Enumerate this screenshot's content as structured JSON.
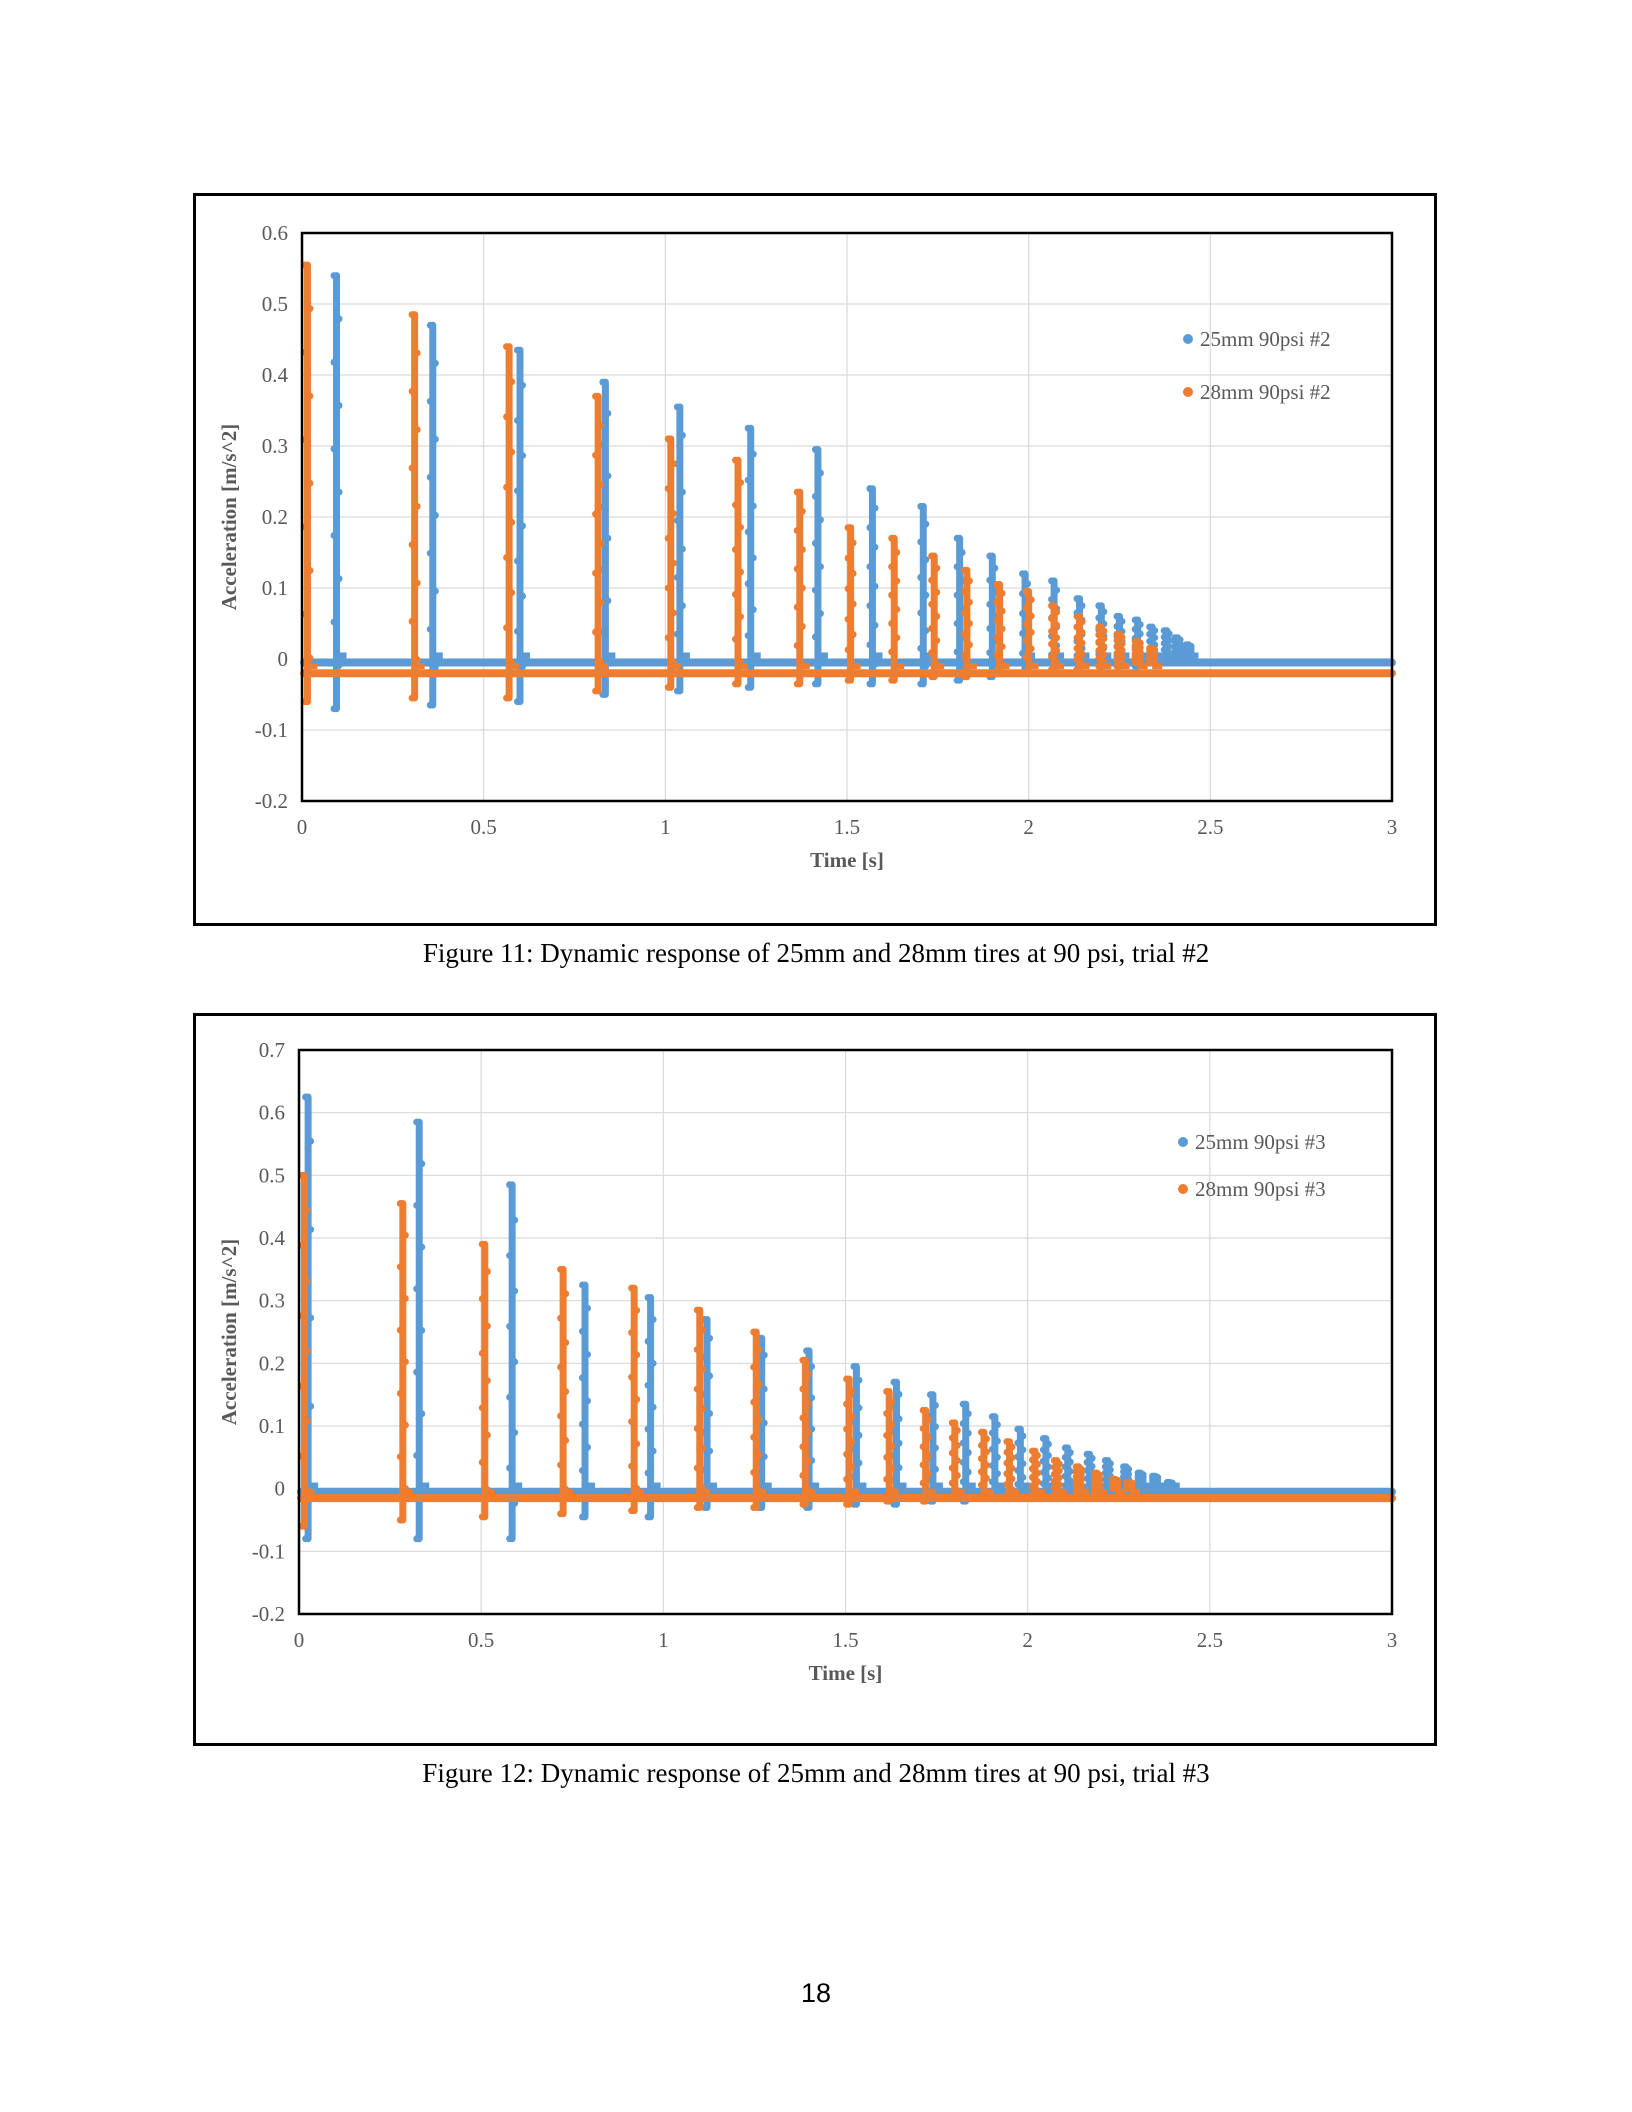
{
  "page_number": "18",
  "figures": [
    {
      "caption": "Figure 11: Dynamic response of 25mm and 28mm tires at 90 psi, trial #2",
      "chart_data": {
        "type": "scatter",
        "xlabel": "Time [s]",
        "ylabel": "Acceleration [m/s^2]",
        "xlim": [
          0,
          3
        ],
        "ylim": [
          -0.2,
          0.6
        ],
        "xticks": [
          "0",
          "0.5",
          "1",
          "1.5",
          "2",
          "2.5",
          "3"
        ],
        "yticks": [
          "-0.2",
          "-0.1",
          "0",
          "0.1",
          "0.2",
          "0.3",
          "0.4",
          "0.5",
          "0.6"
        ],
        "grid": true,
        "legend_position": "top-right",
        "series": [
          {
            "name": "25mm 90psi #2",
            "color": "#5b9bd5",
            "baseline": -0.005,
            "impacts": [
              {
                "t": 0.095,
                "peak": 0.54,
                "min": -0.07
              },
              {
                "t": 0.36,
                "peak": 0.47,
                "min": -0.065
              },
              {
                "t": 0.6,
                "peak": 0.435,
                "min": -0.06
              },
              {
                "t": 0.835,
                "peak": 0.39,
                "min": -0.05
              },
              {
                "t": 1.04,
                "peak": 0.355,
                "min": -0.045
              },
              {
                "t": 1.235,
                "peak": 0.325,
                "min": -0.04
              },
              {
                "t": 1.42,
                "peak": 0.295,
                "min": -0.035
              },
              {
                "t": 1.57,
                "peak": 0.24,
                "min": -0.035
              },
              {
                "t": 1.71,
                "peak": 0.215,
                "min": -0.035
              },
              {
                "t": 1.81,
                "peak": 0.17,
                "min": -0.03
              },
              {
                "t": 1.9,
                "peak": 0.145,
                "min": -0.025
              },
              {
                "t": 1.99,
                "peak": 0.12,
                "min": -0.02
              },
              {
                "t": 2.07,
                "peak": 0.11,
                "min": -0.02
              },
              {
                "t": 2.14,
                "peak": 0.085,
                "min": -0.015
              },
              {
                "t": 2.2,
                "peak": 0.075,
                "min": -0.01
              },
              {
                "t": 2.25,
                "peak": 0.06,
                "min": -0.01
              },
              {
                "t": 2.3,
                "peak": 0.055,
                "min": -0.01
              },
              {
                "t": 2.34,
                "peak": 0.045,
                "min": -0.005
              },
              {
                "t": 2.38,
                "peak": 0.04,
                "min": -0.005
              },
              {
                "t": 2.41,
                "peak": 0.03,
                "min": 0
              },
              {
                "t": 2.44,
                "peak": 0.02,
                "min": 0
              }
            ]
          },
          {
            "name": "28mm 90psi #2",
            "color": "#ed7d31",
            "baseline": -0.02,
            "impacts": [
              {
                "t": 0.015,
                "peak": 0.555,
                "min": -0.06
              },
              {
                "t": 0.31,
                "peak": 0.485,
                "min": -0.055
              },
              {
                "t": 0.57,
                "peak": 0.44,
                "min": -0.055
              },
              {
                "t": 0.815,
                "peak": 0.37,
                "min": -0.045
              },
              {
                "t": 1.015,
                "peak": 0.31,
                "min": -0.04
              },
              {
                "t": 1.2,
                "peak": 0.28,
                "min": -0.035
              },
              {
                "t": 1.37,
                "peak": 0.235,
                "min": -0.035
              },
              {
                "t": 1.51,
                "peak": 0.185,
                "min": -0.03
              },
              {
                "t": 1.63,
                "peak": 0.17,
                "min": -0.03
              },
              {
                "t": 1.74,
                "peak": 0.145,
                "min": -0.025
              },
              {
                "t": 1.83,
                "peak": 0.125,
                "min": -0.025
              },
              {
                "t": 1.92,
                "peak": 0.105,
                "min": -0.02
              },
              {
                "t": 2.0,
                "peak": 0.095,
                "min": -0.02
              },
              {
                "t": 2.07,
                "peak": 0.075,
                "min": -0.015
              },
              {
                "t": 2.14,
                "peak": 0.06,
                "min": -0.015
              },
              {
                "t": 2.2,
                "peak": 0.045,
                "min": -0.01
              },
              {
                "t": 2.25,
                "peak": 0.035,
                "min": -0.01
              },
              {
                "t": 2.3,
                "peak": 0.025,
                "min": -0.005
              },
              {
                "t": 2.34,
                "peak": 0.015,
                "min": -0.005
              }
            ]
          }
        ]
      }
    },
    {
      "caption": "Figure 12: Dynamic response of 25mm and 28mm tires at 90 psi, trial #3",
      "chart_data": {
        "type": "scatter",
        "xlabel": "Time [s]",
        "ylabel": "Acceleration [m/s^2]",
        "xlim": [
          0,
          3
        ],
        "ylim": [
          -0.2,
          0.7
        ],
        "xticks": [
          "0",
          "0.5",
          "1",
          "1.5",
          "2",
          "2.5",
          "3"
        ],
        "yticks": [
          "-0.2",
          "-0.1",
          "0",
          "0.1",
          "0.2",
          "0.3",
          "0.4",
          "0.5",
          "0.6",
          "0.7"
        ],
        "grid": true,
        "legend_position": "top-right",
        "series": [
          {
            "name": "25mm 90psi #3",
            "color": "#5b9bd5",
            "baseline": -0.005,
            "impacts": [
              {
                "t": 0.025,
                "peak": 0.625,
                "min": -0.08
              },
              {
                "t": 0.33,
                "peak": 0.585,
                "min": -0.08
              },
              {
                "t": 0.585,
                "peak": 0.485,
                "min": -0.08
              },
              {
                "t": 0.785,
                "peak": 0.325,
                "min": -0.045
              },
              {
                "t": 0.965,
                "peak": 0.305,
                "min": -0.045
              },
              {
                "t": 1.12,
                "peak": 0.27,
                "min": -0.03
              },
              {
                "t": 1.27,
                "peak": 0.24,
                "min": -0.03
              },
              {
                "t": 1.4,
                "peak": 0.22,
                "min": -0.03
              },
              {
                "t": 1.53,
                "peak": 0.195,
                "min": -0.025
              },
              {
                "t": 1.64,
                "peak": 0.17,
                "min": -0.025
              },
              {
                "t": 1.74,
                "peak": 0.15,
                "min": -0.02
              },
              {
                "t": 1.83,
                "peak": 0.135,
                "min": -0.02
              },
              {
                "t": 1.91,
                "peak": 0.115,
                "min": -0.015
              },
              {
                "t": 1.98,
                "peak": 0.095,
                "min": -0.015
              },
              {
                "t": 2.05,
                "peak": 0.08,
                "min": -0.01
              },
              {
                "t": 2.11,
                "peak": 0.065,
                "min": -0.01
              },
              {
                "t": 2.17,
                "peak": 0.055,
                "min": -0.01
              },
              {
                "t": 2.22,
                "peak": 0.045,
                "min": -0.005
              },
              {
                "t": 2.27,
                "peak": 0.035,
                "min": -0.005
              },
              {
                "t": 2.31,
                "peak": 0.025,
                "min": 0
              },
              {
                "t": 2.35,
                "peak": 0.02,
                "min": 0
              },
              {
                "t": 2.39,
                "peak": 0.01,
                "min": 0
              }
            ]
          },
          {
            "name": "28mm 90psi #3",
            "color": "#ed7d31",
            "baseline": -0.015,
            "impacts": [
              {
                "t": 0.015,
                "peak": 0.5,
                "min": -0.06
              },
              {
                "t": 0.285,
                "peak": 0.455,
                "min": -0.05
              },
              {
                "t": 0.51,
                "peak": 0.39,
                "min": -0.045
              },
              {
                "t": 0.725,
                "peak": 0.35,
                "min": -0.04
              },
              {
                "t": 0.92,
                "peak": 0.32,
                "min": -0.035
              },
              {
                "t": 1.1,
                "peak": 0.285,
                "min": -0.03
              },
              {
                "t": 1.255,
                "peak": 0.25,
                "min": -0.03
              },
              {
                "t": 1.39,
                "peak": 0.205,
                "min": -0.025
              },
              {
                "t": 1.51,
                "peak": 0.175,
                "min": -0.025
              },
              {
                "t": 1.62,
                "peak": 0.155,
                "min": -0.02
              },
              {
                "t": 1.72,
                "peak": 0.125,
                "min": -0.02
              },
              {
                "t": 1.8,
                "peak": 0.105,
                "min": -0.015
              },
              {
                "t": 1.88,
                "peak": 0.09,
                "min": -0.015
              },
              {
                "t": 1.95,
                "peak": 0.075,
                "min": -0.01
              },
              {
                "t": 2.02,
                "peak": 0.06,
                "min": -0.01
              },
              {
                "t": 2.08,
                "peak": 0.045,
                "min": -0.01
              },
              {
                "t": 2.14,
                "peak": 0.035,
                "min": -0.005
              },
              {
                "t": 2.19,
                "peak": 0.025,
                "min": -0.005
              },
              {
                "t": 2.24,
                "peak": 0.015,
                "min": 0
              },
              {
                "t": 2.28,
                "peak": 0.01,
                "min": 0
              }
            ]
          }
        ]
      }
    }
  ]
}
